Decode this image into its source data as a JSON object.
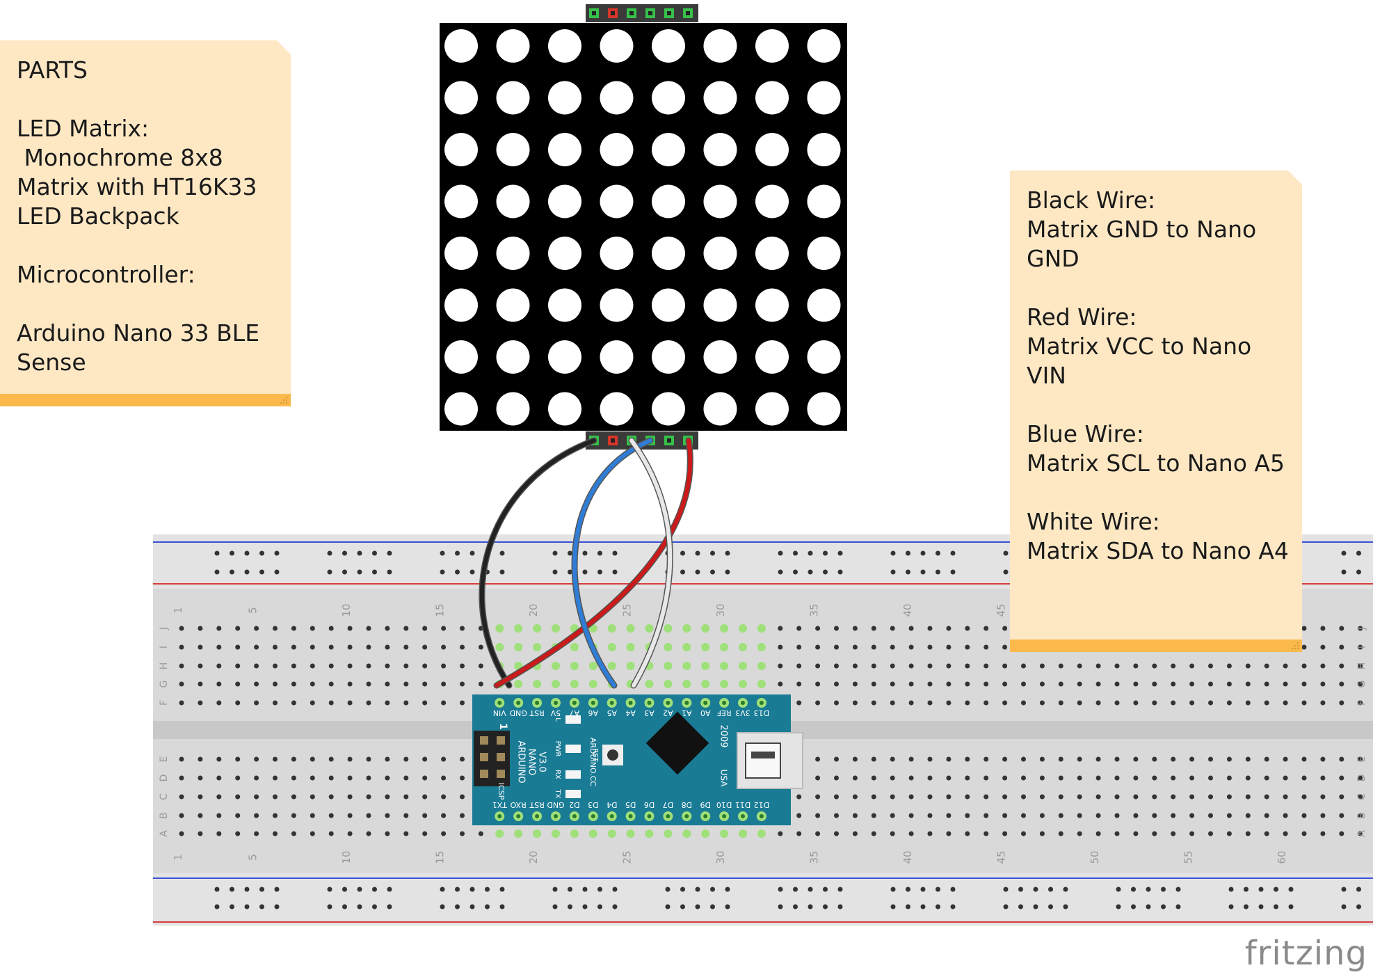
{
  "notes": {
    "parts_lines": [
      "PARTS",
      "",
      "LED Matrix:",
      " Monochrome 8x8",
      "Matrix with HT16K33",
      "LED Backpack",
      "",
      "Microcontroller:",
      "",
      "Arduino Nano 33 BLE",
      "Sense"
    ],
    "wires_lines": [
      "Black Wire:",
      "Matrix GND to Nano",
      "GND",
      "",
      "Red Wire:",
      "Matrix VCC to Nano",
      "VIN",
      "",
      "Blue Wire:",
      "Matrix SCL to Nano A5",
      "",
      "White Wire:",
      "Matrix SDA to Nano A4"
    ]
  },
  "breadboard": {
    "row_letters_top": [
      "J",
      "I",
      "H",
      "G",
      "F"
    ],
    "row_letters_bottom": [
      "E",
      "D",
      "C",
      "B",
      "A"
    ],
    "column_numbers": [
      "1",
      "5",
      "10",
      "15",
      "20",
      "25",
      "30",
      "35",
      "40",
      "45",
      "50",
      "55",
      "60"
    ]
  },
  "nano": {
    "top_pins": [
      "VIN",
      "GND",
      "RST",
      "5V",
      "A7",
      "A6",
      "A5",
      "A4",
      "A3",
      "A2",
      "A1",
      "A0",
      "REF",
      "3V3",
      "D13"
    ],
    "bottom_pins": [
      "TX1",
      "RXO",
      "RST",
      "GND",
      "D2",
      "D3",
      "D4",
      "D5",
      "D6",
      "D7",
      "D8",
      "D9",
      "D10",
      "D11",
      "D12"
    ],
    "brand": "ARDUINO",
    "model": "NANO",
    "version": "V3.0",
    "site": "ARDUINO.CC",
    "year": "2009",
    "usb_label": "USA",
    "icsp_label": "ICSP",
    "header_number": "1",
    "led_labels": [
      "L",
      "PWR",
      "RX",
      "TX"
    ],
    "reset_label": "RST"
  },
  "wires": [
    {
      "name": "black-wire",
      "color": "#222222"
    },
    {
      "name": "red-wire",
      "color": "#cc1a1a"
    },
    {
      "name": "blue-wire",
      "color": "#2f7dd6"
    },
    {
      "name": "white-wire",
      "color": "#e8e8e8"
    }
  ],
  "colors": {
    "note_bg": "#fee8c4",
    "note_accent": "#fbb94c",
    "board_bg": "#d9d9d9",
    "rail_blue": "#3b4fd8",
    "rail_red": "#d83b3b",
    "nano_blue": "#1a7b95",
    "hole_active": "#9fe07a",
    "matrix_bg": "#000000"
  },
  "logo": "fritzing"
}
